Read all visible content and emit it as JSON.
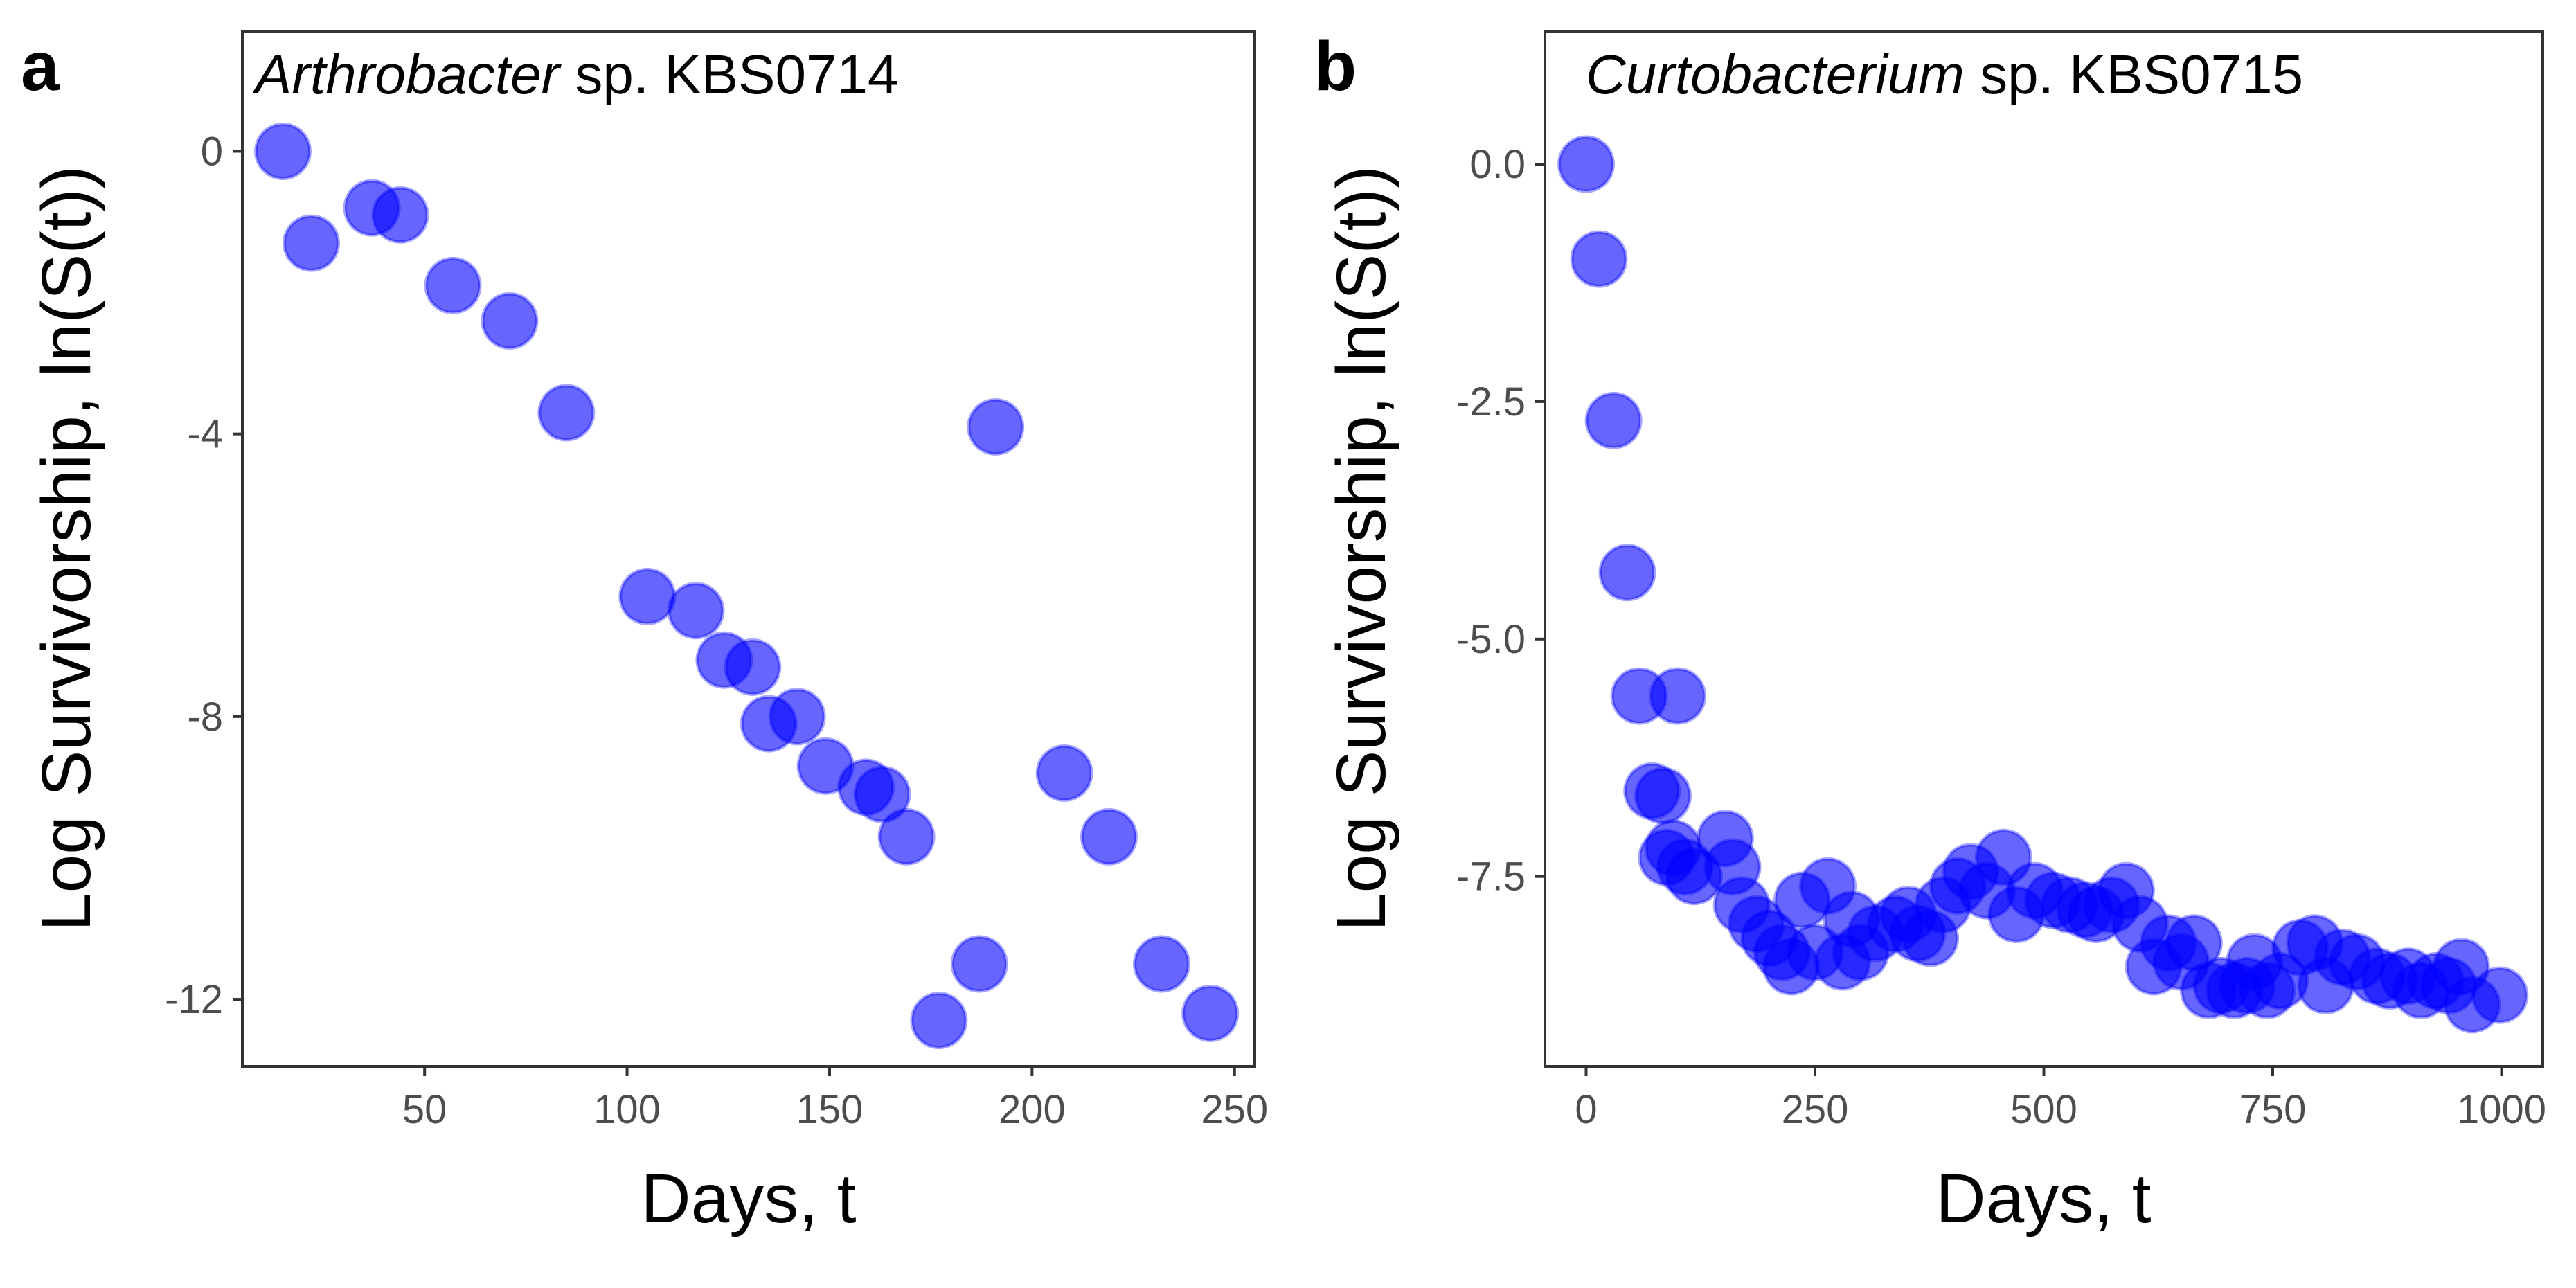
{
  "chart_data": [
    {
      "type": "scatter",
      "panel_label": "a",
      "title_italic": "Arthrobacter",
      "title_rest": " sp. KBS0714",
      "xlabel": "Days, t",
      "ylabel": "Log Survivorship, ln(S(t))",
      "xlim": [
        5,
        255
      ],
      "ylim": [
        -12.95,
        1.7
      ],
      "xticks": [
        50,
        100,
        150,
        200,
        250
      ],
      "xtick_labels": [
        "50",
        "100",
        "150",
        "200",
        "250"
      ],
      "yticks": [
        0,
        -4,
        -8,
        -12
      ],
      "ytick_labels": [
        "0",
        "-4",
        "-8",
        "-12"
      ],
      "grid": false,
      "point_color": "#0000ff",
      "x": [
        15,
        22,
        37,
        44,
        57,
        71,
        85,
        105,
        117,
        124,
        131,
        135,
        142,
        149,
        159,
        163,
        169,
        177,
        187,
        191,
        208,
        219,
        232,
        244
      ],
      "y": [
        0,
        -1.3,
        -0.8,
        -0.9,
        -1.9,
        -2.4,
        -3.7,
        -6.3,
        -6.5,
        -7.2,
        -7.3,
        -8.1,
        -8.0,
        -8.7,
        -9.0,
        -9.1,
        -9.7,
        -12.3,
        -11.5,
        -3.9,
        -8.8,
        -9.7,
        -11.5,
        -12.2
      ]
    },
    {
      "type": "scatter",
      "panel_label": "b",
      "title_italic": "Curtobacterium",
      "title_rest": " sp. KBS0715",
      "xlabel": "Days, t",
      "ylabel": "Log Survivorship, ln(S(t))",
      "xlim": [
        -45,
        1045
      ],
      "ylim": [
        -9.5,
        1.4
      ],
      "xticks": [
        0,
        250,
        500,
        750,
        1000
      ],
      "xtick_labels": [
        "0",
        "250",
        "500",
        "750",
        "1000"
      ],
      "yticks": [
        0,
        -2.5,
        -5,
        -7.5
      ],
      "ytick_labels": [
        "0.0",
        "-2.5",
        "-5.0",
        "-7.5"
      ],
      "grid": false,
      "point_color": "#0000ff",
      "x": [
        0,
        14,
        30,
        45,
        58,
        72,
        84,
        88,
        95,
        100,
        108,
        118,
        152,
        160,
        170,
        186,
        200,
        214,
        224,
        236,
        250,
        264,
        280,
        290,
        300,
        316,
        338,
        352,
        362,
        376,
        390,
        406,
        420,
        438,
        456,
        470,
        490,
        510,
        528,
        545,
        557,
        574,
        590,
        605,
        620,
        636,
        650,
        664,
        680,
        694,
        708,
        722,
        730,
        744,
        758,
        780,
        796,
        808,
        826,
        842,
        864,
        878,
        898,
        912,
        928,
        942,
        956,
        968,
        998
      ],
      "y": [
        0,
        -1.0,
        -2.7,
        -4.3,
        -5.6,
        -6.6,
        -6.65,
        -7.3,
        -7.2,
        -5.6,
        -7.4,
        -7.5,
        -7.1,
        -7.4,
        -7.8,
        -8.0,
        -8.15,
        -8.3,
        -8.45,
        -7.75,
        -8.3,
        -7.6,
        -8.4,
        -7.95,
        -8.3,
        -8.1,
        -8.0,
        -7.9,
        -8.1,
        -8.15,
        -7.8,
        -7.6,
        -7.45,
        -7.65,
        -7.3,
        -7.9,
        -7.65,
        -7.75,
        -7.8,
        -7.85,
        -7.9,
        -7.8,
        -7.65,
        -8.0,
        -8.45,
        -8.2,
        -8.4,
        -8.2,
        -8.7,
        -8.65,
        -8.7,
        -8.65,
        -8.4,
        -8.7,
        -8.6,
        -8.25,
        -8.2,
        -8.65,
        -8.35,
        -8.4,
        -8.55,
        -8.6,
        -8.55,
        -8.7,
        -8.6,
        -8.65,
        -8.45,
        -8.85,
        -8.75
      ]
    }
  ]
}
